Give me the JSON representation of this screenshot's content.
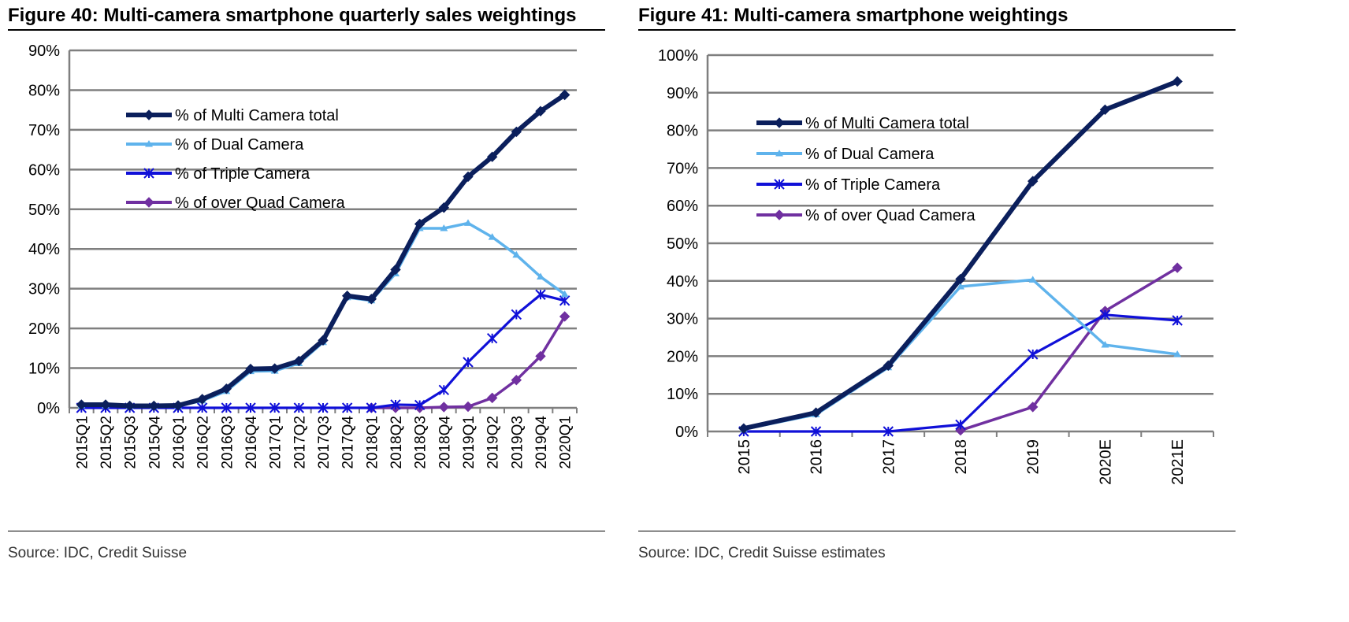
{
  "figures": [
    {
      "title": "Figure 40: Multi-camera smartphone quarterly sales weightings",
      "source": "Source: IDC, Credit Suisse"
    },
    {
      "title": "Figure 41: Multi-camera smartphone weightings",
      "source": "Source: IDC, Credit Suisse estimates"
    }
  ],
  "colors": {
    "multi": "#0b1f5c",
    "dual": "#5fb3ec",
    "triple": "#1010d8",
    "quad": "#7030a0",
    "grid": "#7f7f7f"
  },
  "chart_data": [
    {
      "type": "line",
      "title": "Figure 40: Multi-camera smartphone quarterly sales weightings",
      "x": [
        "2015Q1",
        "2015Q2",
        "2015Q3",
        "2015Q4",
        "2016Q1",
        "2016Q2",
        "2016Q3",
        "2016Q4",
        "2017Q1",
        "2017Q2",
        "2017Q3",
        "2017Q4",
        "2018Q1",
        "2018Q2",
        "2018Q3",
        "2018Q4",
        "2019Q1",
        "2019Q2",
        "2019Q3",
        "2019Q4",
        "2020Q1"
      ],
      "ylim": [
        0,
        90
      ],
      "yticks": [
        "0%",
        "10%",
        "20%",
        "30%",
        "40%",
        "50%",
        "60%",
        "70%",
        "80%",
        "90%"
      ],
      "grid": true,
      "legend_position": "upper-left",
      "series": [
        {
          "name": "% of Multi Camera total",
          "marker": "diamond",
          "values": [
            0.8,
            0.8,
            0.5,
            0.5,
            0.6,
            2.2,
            4.8,
            9.8,
            9.9,
            11.8,
            17.0,
            28.2,
            27.4,
            34.8,
            46.3,
            50.4,
            58.2,
            63.2,
            69.5,
            74.7,
            78.8
          ]
        },
        {
          "name": "% of Dual Camera",
          "marker": "triangle",
          "values": [
            0.6,
            0.6,
            0.4,
            0.4,
            0.5,
            1.8,
            4.2,
            9.2,
            9.3,
            11.2,
            16.5,
            27.8,
            27.0,
            33.8,
            45.2,
            45.2,
            46.5,
            43.0,
            38.5,
            33.0,
            28.6
          ]
        },
        {
          "name": "% of Triple Camera",
          "marker": "star",
          "values": [
            0,
            0,
            0,
            0,
            0,
            0,
            0,
            0,
            0,
            0,
            0,
            0,
            0,
            0.8,
            0.7,
            4.5,
            11.5,
            17.5,
            23.5,
            28.5,
            27.0
          ]
        },
        {
          "name": "% of over Quad Camera",
          "marker": "diamond",
          "values": [
            null,
            null,
            null,
            null,
            null,
            null,
            null,
            null,
            null,
            null,
            null,
            null,
            0,
            0,
            0,
            0.2,
            0.3,
            2.5,
            7.0,
            13.0,
            23.0
          ]
        }
      ]
    },
    {
      "type": "line",
      "title": "Figure 41: Multi-camera smartphone weightings",
      "x": [
        "2015",
        "2016",
        "2017",
        "2018",
        "2019",
        "2020E",
        "2021E"
      ],
      "ylim": [
        0,
        100
      ],
      "yticks": [
        "0%",
        "10%",
        "20%",
        "30%",
        "40%",
        "50%",
        "60%",
        "70%",
        "80%",
        "90%",
        "100%"
      ],
      "grid": true,
      "legend_position": "upper-left",
      "series": [
        {
          "name": "% of Multi Camera total",
          "marker": "diamond",
          "values": [
            0.8,
            5.0,
            17.5,
            40.5,
            66.5,
            85.5,
            93.0
          ]
        },
        {
          "name": "% of Dual Camera",
          "marker": "triangle",
          "values": [
            0.6,
            4.5,
            17.0,
            38.5,
            40.3,
            23.0,
            20.5
          ]
        },
        {
          "name": "% of Triple Camera",
          "marker": "star",
          "values": [
            0,
            0,
            0,
            1.8,
            20.5,
            31.0,
            29.5
          ]
        },
        {
          "name": "% of over Quad Camera",
          "marker": "diamond",
          "values": [
            null,
            null,
            null,
            0.3,
            6.5,
            32.0,
            43.5
          ]
        }
      ]
    }
  ]
}
